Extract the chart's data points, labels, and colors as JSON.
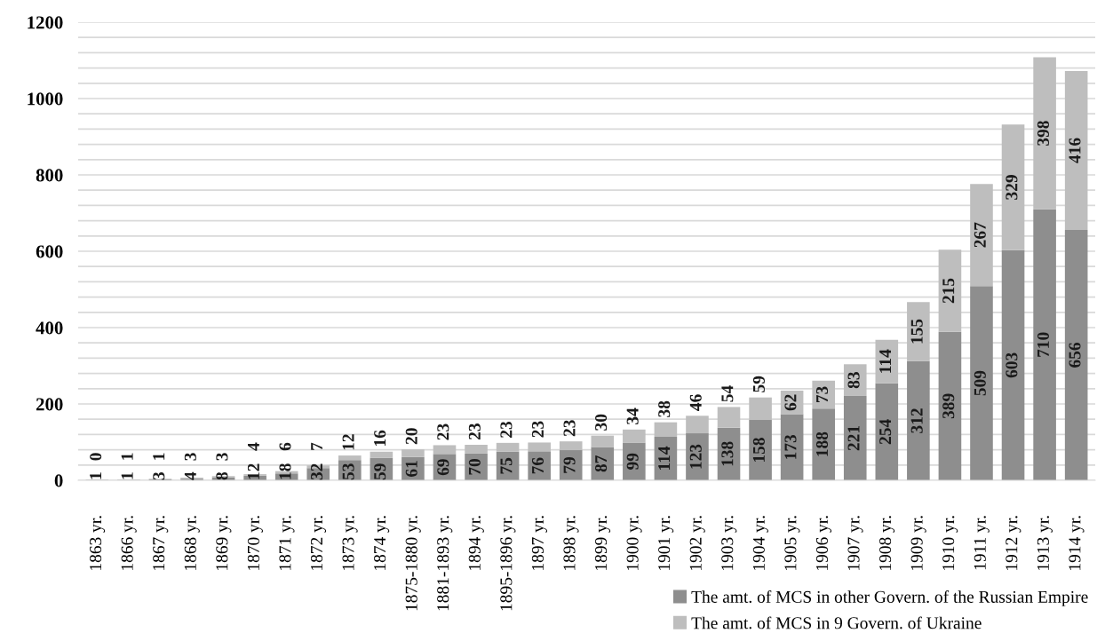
{
  "chart_data": {
    "type": "bar",
    "stacked": true,
    "data_labels": true,
    "grid": "y",
    "legend": "bottom right",
    "categories": [
      "1863 yr.",
      "1866 yr.",
      "1867 yr.",
      "1868 yr.",
      "1869 yr.",
      "1870 yr.",
      "1871 yr.",
      "1872 yr.",
      "1873 yr.",
      "1874 yr.",
      "1875-1880 yr.",
      "1881-1893 yr.",
      "1894 yr.",
      "1895-1896 yr.",
      "1897 yr.",
      "1898 yr.",
      "1899 yr.",
      "1900 yr.",
      "1901 yr.",
      "1902 yr.",
      "1903 yr.",
      "1904 yr.",
      "1905 yr.",
      "1906 yr.",
      "1907 yr.",
      "1908 yr.",
      "1909 yr.",
      "1910 yr.",
      "1911 yr.",
      "1912 yr.",
      "1913 yr.",
      "1914 yr."
    ],
    "series": [
      {
        "name": "The amt. of MCS in other Govern. of the Russian Empire",
        "color": "#8e8e8e",
        "values": [
          1,
          1,
          3,
          4,
          8,
          12,
          18,
          32,
          53,
          59,
          61,
          69,
          70,
          75,
          76,
          79,
          87,
          99,
          114,
          123,
          138,
          158,
          173,
          188,
          221,
          254,
          312,
          389,
          509,
          603,
          710,
          656
        ]
      },
      {
        "name": "The amt. of MCS in 9 Govern. of Ukraine",
        "color": "#bebebe",
        "values": [
          0,
          1,
          1,
          3,
          3,
          4,
          6,
          7,
          12,
          16,
          20,
          23,
          23,
          23,
          23,
          23,
          30,
          34,
          38,
          46,
          54,
          59,
          62,
          73,
          83,
          114,
          155,
          215,
          267,
          329,
          398,
          416
        ]
      }
    ],
    "ylim": [
      0,
      1200
    ],
    "yticks": [
      0,
      {
        "value": 40,
        "label": null
      },
      {
        "value": 80,
        "label": null
      },
      {
        "value": 120,
        "label": null
      },
      {
        "value": 160,
        "label": null
      },
      200,
      {
        "value": 240,
        "label": null
      },
      {
        "value": 280,
        "label": null
      },
      {
        "value": 320,
        "label": null
      },
      {
        "value": 360,
        "label": null
      },
      400,
      {
        "value": 440,
        "label": null
      },
      {
        "value": 480,
        "label": null
      },
      {
        "value": 520,
        "label": null
      },
      {
        "value": 560,
        "label": null
      },
      600,
      {
        "value": 640,
        "label": null
      },
      {
        "value": 680,
        "label": null
      },
      {
        "value": 720,
        "label": null
      },
      {
        "value": 760,
        "label": null
      },
      800,
      {
        "value": 840,
        "label": null
      },
      {
        "value": 880,
        "label": null
      },
      {
        "value": 920,
        "label": null
      },
      {
        "value": 960,
        "label": null
      },
      1000,
      {
        "value": 1040,
        "label": null
      },
      {
        "value": 1080,
        "label": null
      },
      {
        "value": 1120,
        "label": null
      },
      {
        "value": 1160,
        "label": null
      },
      1200
    ]
  }
}
